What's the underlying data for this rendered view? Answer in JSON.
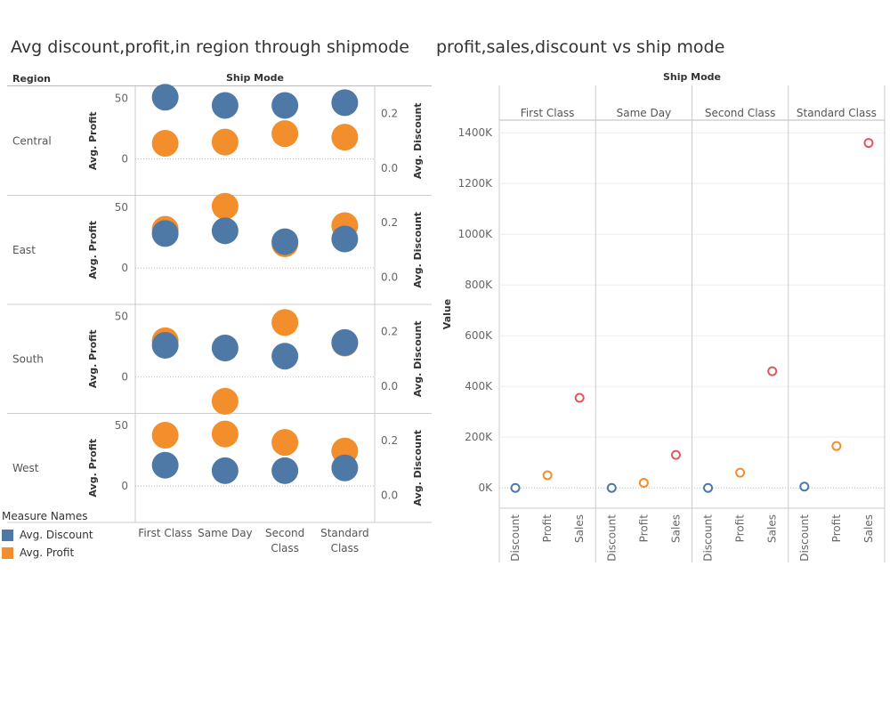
{
  "titles": {
    "left": "Avg discount,profit,in region through shipmode",
    "right": "profit,sales,discount vs ship mode"
  },
  "legend": {
    "title": "Measure Names",
    "items": [
      {
        "label": "Avg. Discount",
        "color": "#4e79a7"
      },
      {
        "label": "Avg. Profit",
        "color": "#f28e2b"
      }
    ]
  },
  "chart_data": [
    {
      "type": "scatter",
      "title": "Avg discount,profit,in region through shipmode",
      "row_header": "Region",
      "column_header": "Ship Mode",
      "categories": [
        "First Class",
        "Same Day",
        "Second Class",
        "Standard Class"
      ],
      "category_labels": [
        [
          "First Class"
        ],
        [
          "Same Day"
        ],
        [
          "Second",
          "Class"
        ],
        [
          "Standard",
          "Class"
        ]
      ],
      "rows": [
        "Central",
        "East",
        "South",
        "West"
      ],
      "left_axis": {
        "label": "Avg. Profit",
        "ticks": [
          0,
          50
        ],
        "range": [
          -30,
          60
        ]
      },
      "right_axis": {
        "label": "Avg. Discount",
        "ticks": [
          0.0,
          0.2
        ],
        "tick_labels": [
          "0.0",
          "0.2"
        ],
        "range": [
          -0.1,
          0.3
        ]
      },
      "series": [
        {
          "name": "Avg. Profit",
          "color": "#f28e2b",
          "axis": "left",
          "values": [
            [
              13,
              14,
              21,
              18
            ],
            [
              32,
              51,
              20,
              35
            ],
            [
              30,
              -20,
              45,
              28
            ],
            [
              42,
              43,
              36,
              29
            ]
          ]
        },
        {
          "name": "Avg. Discount",
          "color": "#4e79a7",
          "axis": "right",
          "values": [
            [
              0.26,
              0.23,
              0.23,
              0.24
            ],
            [
              0.16,
              0.17,
              0.13,
              0.14
            ],
            [
              0.15,
              0.14,
              0.11,
              0.16
            ],
            [
              0.11,
              0.09,
              0.09,
              0.1
            ]
          ]
        }
      ]
    },
    {
      "type": "scatter",
      "title": "profit,sales,discount vs ship mode",
      "column_header": "Ship Mode",
      "categories": [
        "First Class",
        "Same Day",
        "Second Class",
        "Standard Class"
      ],
      "measures": [
        "Discount",
        "Profit",
        "Sales"
      ],
      "measure_colors": [
        "#4e79a7",
        "#f28e2b",
        "#e15759"
      ],
      "ylabel": "Value",
      "ylim": [
        -80000,
        1450000
      ],
      "y_ticks": [
        0,
        200000,
        400000,
        600000,
        800000,
        1000000,
        1200000,
        1400000
      ],
      "y_tick_labels": [
        "0K",
        "200K",
        "400K",
        "600K",
        "800K",
        "1000K",
        "1200K",
        "1400K"
      ],
      "values": [
        [
          0,
          50000,
          355000
        ],
        [
          0,
          20000,
          130000
        ],
        [
          0,
          60000,
          460000
        ],
        [
          5000,
          165000,
          1360000
        ]
      ]
    }
  ]
}
